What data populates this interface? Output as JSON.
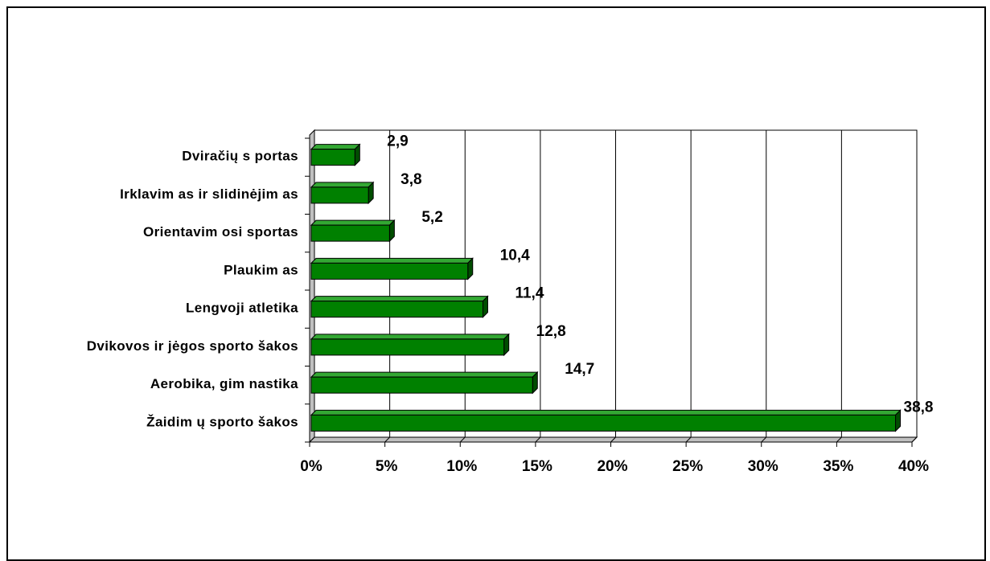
{
  "chart_data": {
    "type": "bar",
    "orientation": "horizontal",
    "categories": [
      "Dviračių sportas",
      "Irklavimas ir slidinėjimas",
      "Orientavimosi sportas",
      "Plaukimas",
      "Lengvoji atletika",
      "Dvikovos ir jėgos sporto šakos",
      "Aerobika, gimnastika",
      "Žaidimų sporto šakos"
    ],
    "category_display": [
      "Dviračių s portas",
      "Irklavim as ir slidinėjim as",
      "Orientavim osi sportas",
      "Plaukim as",
      "Lengvoji atletika",
      "Dvikovos ir jėgos sporto šakos",
      "Aerobika, gim nastika",
      "Žaidim ų sporto šakos"
    ],
    "values": [
      2.9,
      3.8,
      5.2,
      10.4,
      11.4,
      12.8,
      14.7,
      38.8
    ],
    "value_labels": [
      "2,9",
      "3,8",
      "5,2",
      "10,4",
      "11,4",
      "12,8",
      "14,7",
      "38,8"
    ],
    "xlim": [
      0,
      40
    ],
    "x_ticks": [
      0,
      5,
      10,
      15,
      20,
      25,
      30,
      35,
      40
    ],
    "x_tick_labels": [
      "0%",
      "5%",
      "10%",
      "15%",
      "20%",
      "25%",
      "30%",
      "35%",
      "40%"
    ],
    "grid": "vertical",
    "bar_style": "3d",
    "colors": {
      "bar_front": "#008000",
      "bar_top": "#33a833",
      "bar_side": "#004d00",
      "plot_background": "#ffffff",
      "wall": "#c0c0c0",
      "gridline": "#000000"
    },
    "title": "",
    "xlabel": "",
    "ylabel": ""
  }
}
